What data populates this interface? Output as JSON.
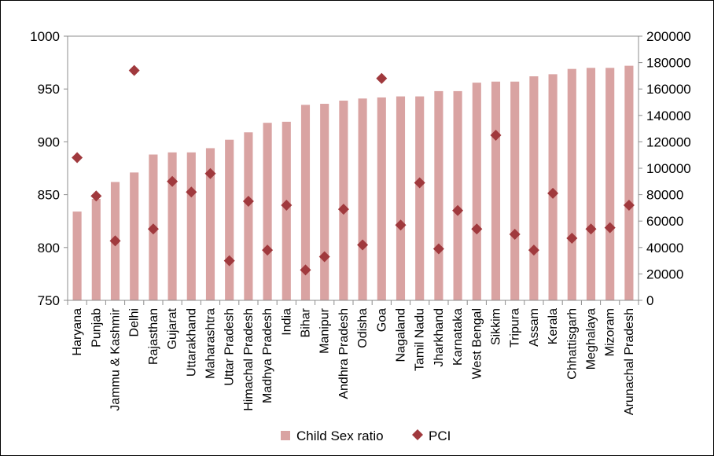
{
  "chart_data": {
    "type": "bar",
    "title": "",
    "xlabel": "",
    "ylabel": "",
    "categories": [
      "Haryana",
      "Punjab",
      "Jammu & Kashmir",
      "Delhi",
      "Rajasthan",
      "Gujarat",
      "Uttarakhand",
      "Maharashtra",
      "Uttar Pradesh",
      "Himachal Pradesh",
      "Madhya Pradesh",
      "India",
      "Bihar",
      "Manipur",
      "Andhra Pradesh",
      "Odisha",
      "Goa",
      "Nagaland",
      "Tamil Nadu",
      "Jharkhand",
      "Karnataka",
      "West Bengal",
      "Sikkim",
      "Tripura",
      "Assam",
      "Kerala",
      "Chhattisgarh",
      "Meghalaya",
      "Mizoram",
      "Arunachal Pradesh"
    ],
    "series": [
      {
        "name": "Child Sex ratio",
        "kind": "bar",
        "axis": "left",
        "color": "#D9A3A2",
        "values": [
          834,
          846,
          862,
          871,
          888,
          890,
          890,
          894,
          902,
          909,
          918,
          919,
          935,
          936,
          939,
          941,
          942,
          943,
          943,
          948,
          948,
          956,
          957,
          957,
          962,
          964,
          969,
          970,
          970,
          972
        ]
      },
      {
        "name": "PCI",
        "kind": "scatter",
        "marker": "diamond",
        "axis": "right",
        "color": "#A0393D",
        "values": [
          108000,
          79000,
          45000,
          174000,
          54000,
          90000,
          82000,
          96000,
          30000,
          75000,
          38000,
          72000,
          23000,
          33000,
          69000,
          42000,
          168000,
          57000,
          89000,
          39000,
          68000,
          54000,
          125000,
          50000,
          38000,
          81000,
          47000,
          54000,
          55000,
          72000
        ]
      }
    ],
    "y_left": {
      "ylim": [
        750,
        1000
      ],
      "ticks": [
        "750",
        "800",
        "850",
        "900",
        "950",
        "1000"
      ]
    },
    "y_right": {
      "ylim": [
        0,
        200000
      ],
      "ticks": [
        "0",
        "20000",
        "40000",
        "60000",
        "80000",
        "100000",
        "120000",
        "140000",
        "160000",
        "180000",
        "200000"
      ]
    },
    "grid": false,
    "legend": {
      "position": "bottom",
      "entries": [
        "Child Sex ratio",
        "PCI"
      ]
    }
  }
}
